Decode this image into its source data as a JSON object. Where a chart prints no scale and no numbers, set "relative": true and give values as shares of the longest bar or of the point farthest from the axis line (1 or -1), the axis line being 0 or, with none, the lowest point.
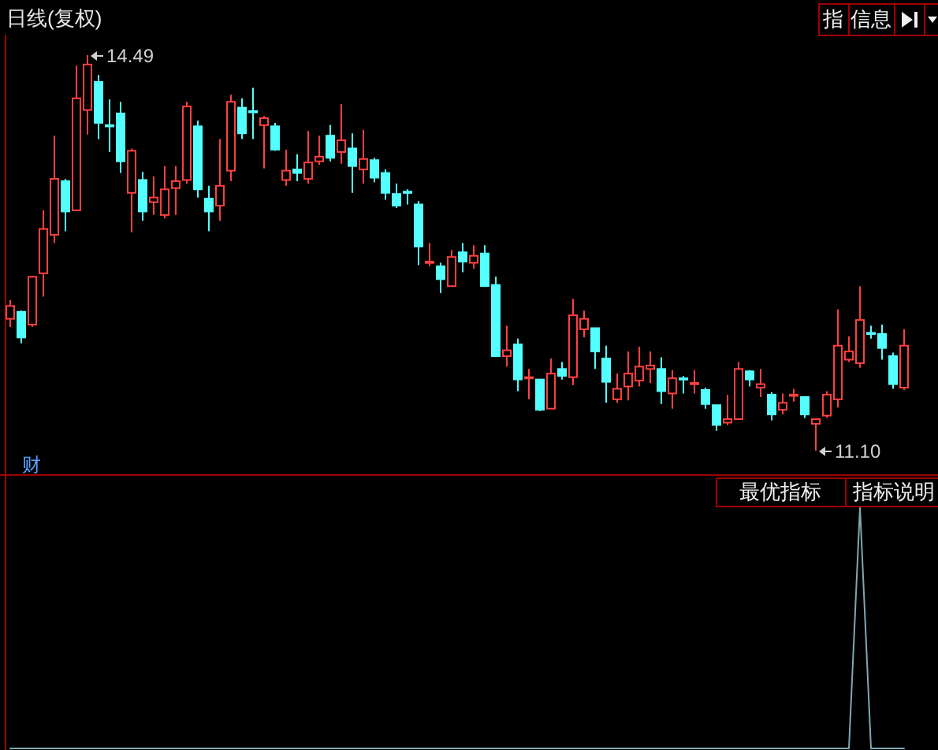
{
  "chart_data": [
    {
      "type": "candlestick",
      "title": "日线(复权)",
      "categories": [
        null,
        null,
        null,
        null,
        null,
        null,
        null,
        null,
        null,
        null,
        null,
        null,
        null,
        null,
        null,
        null,
        null,
        null,
        null,
        null,
        null,
        null,
        null,
        null,
        null,
        null,
        null,
        null,
        null,
        null,
        null,
        null,
        null,
        null,
        null,
        null,
        null,
        null,
        null,
        null,
        null,
        null,
        null,
        null,
        null,
        null,
        null,
        null,
        null,
        null,
        null,
        null,
        null,
        null,
        null,
        null,
        null,
        null,
        null,
        null,
        null,
        null,
        null,
        null,
        null,
        null,
        null,
        null,
        null,
        null,
        null,
        null,
        null,
        null,
        null,
        null,
        null,
        null,
        null,
        null,
        null,
        null
      ],
      "ohlc": [
        [
          12.23,
          12.39,
          12.16,
          12.34
        ],
        [
          12.29,
          12.3,
          12.02,
          12.07
        ],
        [
          12.18,
          12.6,
          12.16,
          12.59
        ],
        [
          12.62,
          13.16,
          12.42,
          13.0
        ],
        [
          12.95,
          13.8,
          12.88,
          13.43
        ],
        [
          13.41,
          13.43,
          12.98,
          13.15
        ],
        [
          13.16,
          14.4,
          13.16,
          14.12
        ],
        [
          14.02,
          14.49,
          13.81,
          14.41
        ],
        [
          14.26,
          14.32,
          13.77,
          13.91
        ],
        [
          13.89,
          14.11,
          13.66,
          13.88
        ],
        [
          13.99,
          14.09,
          13.48,
          13.58
        ],
        [
          13.31,
          13.69,
          12.97,
          13.67
        ],
        [
          13.42,
          13.49,
          13.07,
          13.15
        ],
        [
          13.23,
          13.45,
          13.12,
          13.27
        ],
        [
          13.12,
          13.54,
          13.09,
          13.34
        ],
        [
          13.35,
          13.54,
          13.12,
          13.41
        ],
        [
          13.42,
          14.09,
          13.39,
          14.05
        ],
        [
          13.88,
          13.93,
          13.27,
          13.34
        ],
        [
          13.26,
          13.37,
          12.98,
          13.15
        ],
        [
          13.2,
          13.77,
          13.07,
          13.37
        ],
        [
          13.5,
          14.15,
          13.41,
          14.09
        ],
        [
          14.04,
          14.12,
          13.77,
          13.82
        ],
        [
          14.01,
          14.21,
          13.77,
          14.0
        ],
        [
          13.89,
          13.97,
          13.52,
          13.95
        ],
        [
          13.88,
          13.91,
          13.67,
          13.68
        ],
        [
          13.42,
          13.68,
          13.37,
          13.5
        ],
        [
          13.51,
          13.64,
          13.41,
          13.48
        ],
        [
          13.43,
          13.84,
          13.39,
          13.57
        ],
        [
          13.58,
          13.8,
          13.55,
          13.62
        ],
        [
          13.8,
          13.89,
          13.58,
          13.61
        ],
        [
          13.66,
          14.07,
          13.56,
          13.76
        ],
        [
          13.69,
          13.82,
          13.31,
          13.54
        ],
        [
          13.51,
          13.85,
          13.39,
          13.6
        ],
        [
          13.59,
          13.61,
          13.4,
          13.44
        ],
        [
          13.48,
          13.51,
          13.25,
          13.31
        ],
        [
          13.3,
          13.39,
          13.18,
          13.2
        ],
        [
          13.32,
          13.34,
          13.21,
          13.31
        ],
        [
          13.21,
          13.24,
          12.69,
          12.85
        ],
        [
          12.71,
          12.88,
          12.68,
          12.72
        ],
        [
          12.68,
          12.71,
          12.45,
          12.57
        ],
        [
          12.51,
          12.82,
          12.51,
          12.76
        ],
        [
          12.8,
          12.88,
          12.63,
          12.72
        ],
        [
          12.71,
          12.86,
          12.66,
          12.77
        ],
        [
          12.79,
          12.86,
          12.51,
          12.51
        ],
        [
          12.52,
          12.59,
          11.91,
          11.91
        ],
        [
          11.91,
          12.17,
          11.82,
          11.96
        ],
        [
          12.01,
          12.06,
          11.61,
          11.71
        ],
        [
          11.72,
          11.8,
          11.54,
          11.73
        ],
        [
          11.71,
          11.71,
          11.44,
          11.45
        ],
        [
          11.46,
          11.89,
          11.46,
          11.76
        ],
        [
          11.8,
          11.86,
          11.71,
          11.74
        ],
        [
          11.73,
          12.4,
          11.66,
          12.26
        ],
        [
          12.14,
          12.3,
          12.07,
          12.23
        ],
        [
          12.15,
          12.15,
          11.8,
          11.95
        ],
        [
          11.89,
          12.0,
          11.51,
          11.69
        ],
        [
          11.54,
          11.76,
          11.51,
          11.63
        ],
        [
          11.65,
          11.95,
          11.53,
          11.76
        ],
        [
          11.7,
          11.99,
          11.65,
          11.82
        ],
        [
          11.8,
          11.95,
          11.68,
          11.83
        ],
        [
          11.8,
          11.9,
          11.5,
          11.61
        ],
        [
          11.59,
          11.79,
          11.46,
          11.72
        ],
        [
          11.72,
          11.74,
          11.59,
          11.71
        ],
        [
          11.67,
          11.79,
          11.59,
          11.68
        ],
        [
          11.62,
          11.64,
          11.46,
          11.5
        ],
        [
          11.49,
          11.49,
          11.27,
          11.32
        ],
        [
          11.34,
          11.58,
          11.32,
          11.37
        ],
        [
          11.37,
          11.86,
          11.37,
          11.8
        ],
        [
          11.78,
          11.79,
          11.65,
          11.71
        ],
        [
          11.64,
          11.8,
          11.56,
          11.67
        ],
        [
          11.58,
          11.6,
          11.36,
          11.41
        ],
        [
          11.45,
          11.59,
          11.41,
          11.51
        ],
        [
          11.57,
          11.63,
          11.52,
          11.58
        ],
        [
          11.56,
          11.56,
          11.38,
          11.41
        ],
        [
          11.33,
          11.37,
          11.1,
          11.37
        ],
        [
          11.4,
          11.61,
          11.38,
          11.58
        ],
        [
          11.54,
          12.31,
          11.47,
          12.0
        ],
        [
          11.88,
          12.08,
          11.86,
          11.95
        ],
        [
          11.85,
          12.51,
          11.81,
          12.22
        ],
        [
          12.11,
          12.17,
          12.06,
          12.1
        ],
        [
          12.1,
          12.18,
          11.88,
          11.98
        ],
        [
          11.91,
          11.94,
          11.63,
          11.67
        ],
        [
          11.64,
          12.14,
          11.62,
          12.0
        ]
      ],
      "colors": [
        "#ff4040",
        "#54ffff",
        "#ff4040",
        "#ff4040",
        "#ff4040",
        "#54ffff",
        "#ff4040",
        "#ff4040",
        "#54ffff",
        "#54ffff",
        "#54ffff",
        "#ff4040",
        "#54ffff",
        "#ff4040",
        "#ff4040",
        "#ff4040",
        "#ff4040",
        "#54ffff",
        "#54ffff",
        "#ff4040",
        "#ff4040",
        "#54ffff",
        "#54ffff",
        "#ff4040",
        "#54ffff",
        "#ff4040",
        "#54ffff",
        "#ff4040",
        "#ff4040",
        "#54ffff",
        "#ff4040",
        "#54ffff",
        "#ff4040",
        "#54ffff",
        "#54ffff",
        "#54ffff",
        "#54ffff",
        "#54ffff",
        "#ff4040",
        "#54ffff",
        "#ff4040",
        "#54ffff",
        "#ff4040",
        "#54ffff",
        "#54ffff",
        "#ff4040",
        "#54ffff",
        "#ff4040",
        "#54ffff",
        "#ff4040",
        "#54ffff",
        "#ff4040",
        "#ff4040",
        "#54ffff",
        "#54ffff",
        "#ff4040",
        "#ff4040",
        "#ff4040",
        "#ff4040",
        "#54ffff",
        "#ff4040",
        "#54ffff",
        "#ff4040",
        "#54ffff",
        "#54ffff",
        "#ff4040",
        "#ff4040",
        "#54ffff",
        "#ff4040",
        "#54ffff",
        "#ff4040",
        "#ff4040",
        "#54ffff",
        "#ff4040",
        "#ff4040",
        "#ff4040",
        "#ff4040",
        "#ff4040",
        "#54ffff",
        "#54ffff",
        "#54ffff",
        "#ff4040"
      ],
      "annotations": [
        "14.49",
        "11.10",
        "指",
        "信息",
        "财"
      ]
    },
    {
      "type": "line",
      "relative": true,
      "categories": [
        null,
        null,
        null,
        null,
        null,
        null,
        null,
        null,
        null,
        null,
        null,
        null,
        null,
        null,
        null,
        null,
        null,
        null,
        null,
        null,
        null,
        null,
        null,
        null,
        null,
        null,
        null,
        null,
        null,
        null,
        null,
        null,
        null,
        null,
        null,
        null,
        null,
        null,
        null,
        null,
        null,
        null,
        null,
        null,
        null,
        null,
        null,
        null,
        null,
        null,
        null,
        null,
        null,
        null,
        null,
        null,
        null,
        null,
        null,
        null,
        null,
        null,
        null,
        null,
        null,
        null,
        null,
        null,
        null,
        null,
        null,
        null,
        null,
        null,
        null,
        null,
        null,
        null,
        null,
        null,
        null,
        null
      ],
      "series": [
        {
          "color": "#7fa8b4",
          "values": [
            0,
            0,
            0,
            0,
            0,
            0,
            0,
            0,
            0,
            0,
            0,
            0,
            0,
            0,
            0,
            0,
            0,
            0,
            0,
            0,
            0,
            0,
            0,
            0,
            0,
            0,
            0,
            0,
            0,
            0,
            0,
            0,
            0,
            0,
            0,
            0,
            0,
            0,
            0,
            0,
            0,
            0,
            0,
            0,
            0,
            0,
            0,
            0,
            0,
            0,
            0,
            0,
            0,
            0,
            0,
            0,
            0,
            0,
            0,
            0,
            0,
            0,
            0,
            0,
            0,
            0,
            0,
            0,
            0,
            0,
            0,
            0,
            0,
            0,
            0,
            0,
            0,
            1,
            0,
            0,
            0,
            0
          ]
        }
      ],
      "annotations": [
        "最优指标",
        "指标说明"
      ]
    }
  ]
}
